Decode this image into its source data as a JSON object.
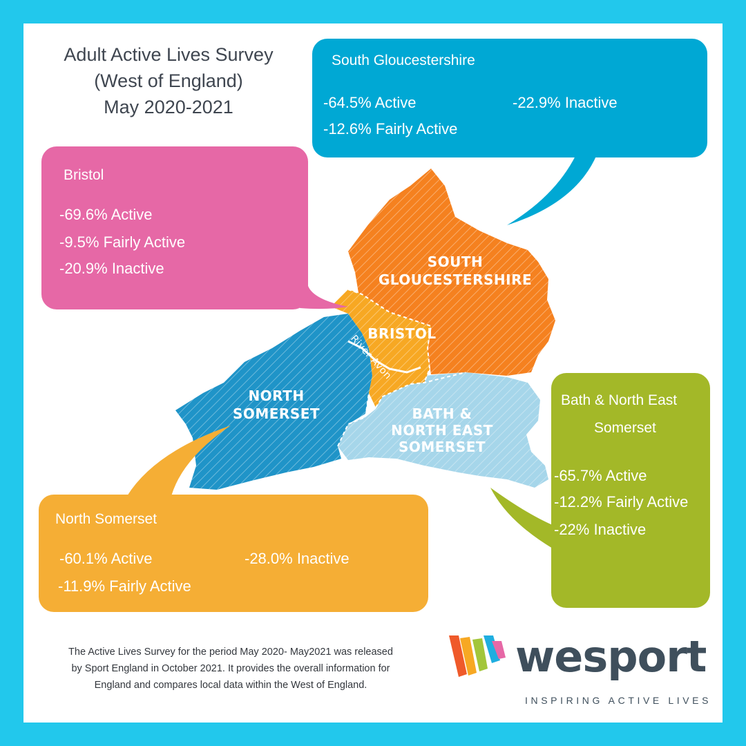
{
  "title": {
    "line1": "Adult Active Lives Survey",
    "line2": "(West of England)",
    "line3": "May 2020-2021"
  },
  "map": {
    "regions": {
      "south_gloucestershire": {
        "line1": "SOUTH",
        "line2": "GLOUCESTERSHIRE",
        "color": "#f5811f"
      },
      "bristol": {
        "line1": "BRISTOL",
        "color": "#f7a823"
      },
      "north_somerset": {
        "line1": "NORTH",
        "line2": "SOMERSET",
        "color": "#1f94c8"
      },
      "bath_ne_somerset": {
        "line1": "BATH &",
        "line2": "NORTH EAST",
        "line3": "SOMERSET",
        "color": "#a6d6ea"
      }
    },
    "river": "River Avon"
  },
  "regions_stats": {
    "south_gloucestershire": {
      "name": "South Gloucestershire",
      "active": "-64.5% Active",
      "fairly_active": "-12.6% Fairly Active",
      "inactive": "-22.9% Inactive",
      "color": "#00a8d4"
    },
    "bristol": {
      "name": "Bristol",
      "active": "-69.6% Active",
      "fairly_active": "-9.5% Fairly Active",
      "inactive": "-20.9% Inactive",
      "color": "#e668a6"
    },
    "bath_ne_somerset": {
      "name_line1": "Bath & North  East",
      "name_line2": "Somerset",
      "active": "-65.7% Active",
      "fairly_active": "-12.2% Fairly Active",
      "inactive": "-22% Inactive",
      "color": "#a3b828"
    },
    "north_somerset": {
      "name": "North Somerset",
      "active": "-60.1% Active",
      "fairly_active": "-11.9% Fairly Active",
      "inactive": "-28.0% Inactive",
      "color": "#f5ae35"
    }
  },
  "footer": {
    "line1": "The Active Lives Survey for the period May 2020- May2021 was released",
    "line2": "by Sport England in October 2021. It provides the overall information for",
    "line3": "England and compares local data within the West of England."
  },
  "logo": {
    "word": "wesport",
    "tagline": "INSPIRING ACTIVE LIVES"
  },
  "colors": {
    "frame": "#22c8ec",
    "text_dark": "#3f4650"
  }
}
